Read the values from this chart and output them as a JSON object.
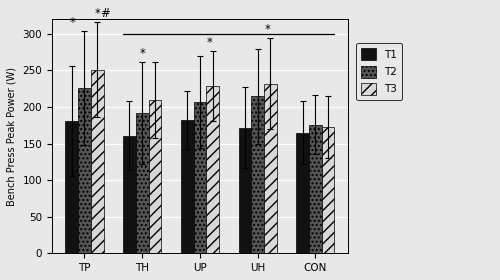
{
  "groups": [
    "TP",
    "TH",
    "UP",
    "UH",
    "CON"
  ],
  "t1_values": [
    181,
    161,
    182,
    172,
    165
  ],
  "t2_values": [
    226,
    192,
    207,
    215,
    176
  ],
  "t3_values": [
    251,
    209,
    229,
    232,
    173
  ],
  "t1_errors": [
    75,
    47,
    40,
    55,
    43
  ],
  "t2_errors": [
    78,
    70,
    63,
    65,
    40
  ],
  "t3_errors": [
    65,
    52,
    48,
    62,
    42
  ],
  "ylabel": "Bench Press Peak Power (W)",
  "ylim": [
    0,
    320
  ],
  "yticks": [
    0,
    50,
    100,
    150,
    200,
    250,
    300
  ],
  "legend_labels": [
    "T1",
    "T2",
    "T3"
  ],
  "bar_width": 0.22,
  "color_t1": "#111111",
  "color_t2": "#555555",
  "color_t3": "#d8d8d8",
  "hatch_t1": "",
  "hatch_t2": "....",
  "hatch_t3": "///",
  "bg_color": "#e8e8e8",
  "grid_color": "#ffffff"
}
